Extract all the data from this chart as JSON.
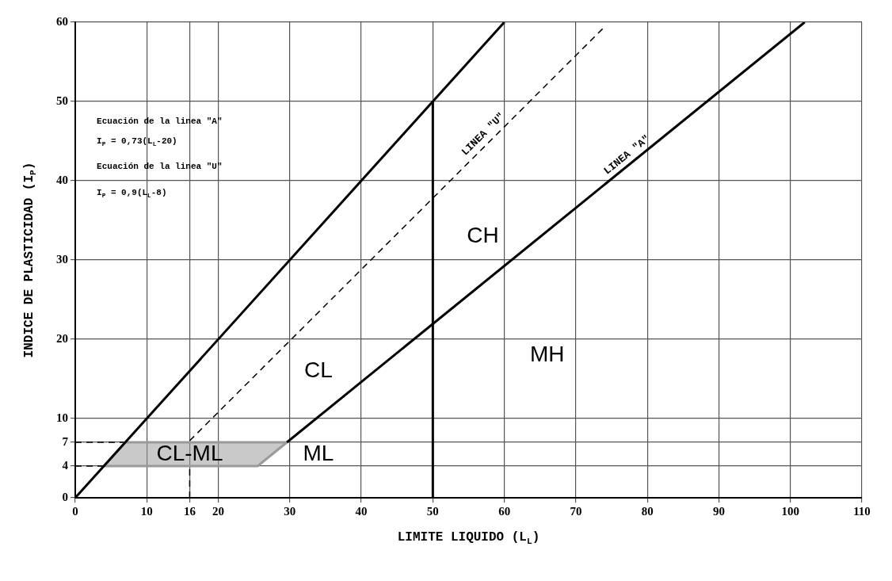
{
  "chart_data": {
    "type": "line",
    "xlabel": "LIMITE LIQUIDO (L$_{L}$)",
    "ylabel": "INDICE DE PLASTICIDAD (I$_{P}$)",
    "xlim": [
      0,
      110
    ],
    "ylim": [
      0,
      60
    ],
    "xticks": [
      0,
      10,
      16,
      20,
      30,
      40,
      50,
      60,
      70,
      80,
      90,
      100,
      110
    ],
    "yticks": [
      0,
      4,
      7,
      10,
      20,
      30,
      40,
      50,
      60
    ],
    "grid": true,
    "legend": false,
    "marker": "none",
    "series": [
      {
        "type": "line",
        "color": "#000000",
        "line_style": "solid",
        "x": [
          0,
          60
        ],
        "values": [
          0,
          60
        ]
      },
      {
        "type": "line",
        "color": "#000000",
        "line_style": "dashed",
        "x": [
          16,
          74
        ],
        "values": [
          7.2,
          59.4
        ]
      },
      {
        "type": "line",
        "color": "#000000",
        "line_style": "solid",
        "x": [
          29.6,
          102
        ],
        "values": [
          7,
          60
        ]
      },
      {
        "type": "line",
        "color": "#000000",
        "line_style": "solid",
        "x": [
          50,
          50
        ],
        "values": [
          0,
          50
        ]
      },
      {
        "type": "area",
        "color": "#9a9a9a",
        "line_style": "solid",
        "x": [
          4,
          7,
          29.6,
          25.5,
          4
        ],
        "values": [
          4,
          7,
          7,
          4,
          4
        ]
      },
      {
        "type": "line",
        "color": "#000000",
        "line_style": "dashed",
        "x": [
          0,
          7
        ],
        "values": [
          7,
          7
        ]
      },
      {
        "type": "line",
        "color": "#000000",
        "line_style": "dashed",
        "x": [
          0,
          4
        ],
        "values": [
          4,
          4
        ]
      },
      {
        "type": "line",
        "color": "#000000",
        "line_style": "dashed",
        "x": [
          16,
          16
        ],
        "values": [
          0,
          4
        ]
      }
    ],
    "annotations": [
      "Ecuación de la linea \"A\"",
      "I$_{P}$ = 0,73(L$_{L}$-20)",
      "Ecuación de la linea \"U\"",
      "I$_{P}$ = 0,9(L$_{L}$-8)",
      {
        "text": "LINEA \"U\"",
        "x": 58,
        "y": 45
      },
      {
        "text": "LINEA \"A\"",
        "x": 78,
        "y": 42.3
      },
      "CH",
      "CL",
      "MH",
      "ML",
      "CL-ML"
    ]
  }
}
